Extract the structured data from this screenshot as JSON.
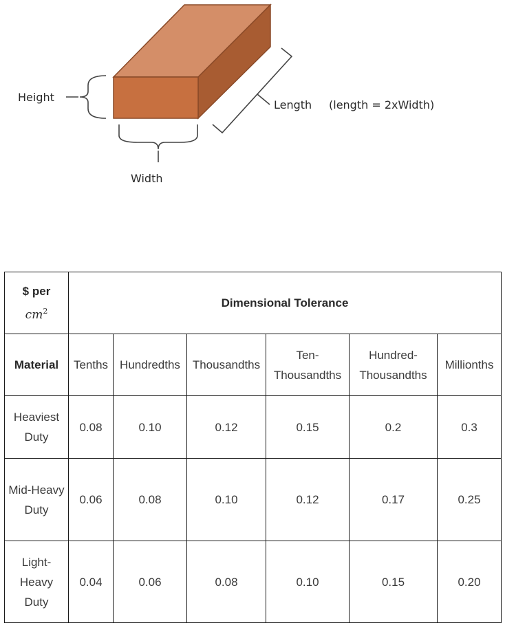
{
  "diagram": {
    "height_label": "Height",
    "width_label": "Width",
    "length_label": "Length",
    "length_note": "(length = 2xWidth)",
    "colors": {
      "front_face": "#c77040",
      "top_face": "#d48e68",
      "side_face": "#a85c32",
      "edge": "#8a4a28"
    }
  },
  "table": {
    "unit_prefix": "$ per",
    "unit_var": "cm",
    "unit_exp": "2",
    "header_span": "Dimensional Tolerance",
    "columns": [
      "Material",
      "Tenths",
      "Hundredths",
      "Thousandths",
      "Ten-Thousandths",
      "Hundred-Thousandths",
      "Millionths"
    ],
    "rows": [
      {
        "material": "Heaviest Duty",
        "values": [
          "0.08",
          "0.10",
          "0.12",
          "0.15",
          "0.2",
          "0.3"
        ]
      },
      {
        "material": "Mid-Heavy Duty",
        "values": [
          "0.06",
          "0.08",
          "0.10",
          "0.12",
          "0.17",
          "0.25"
        ]
      },
      {
        "material": "Light-Heavy Duty",
        "values": [
          "0.04",
          "0.06",
          "0.08",
          "0.10",
          "0.15",
          "0.20"
        ]
      }
    ]
  }
}
